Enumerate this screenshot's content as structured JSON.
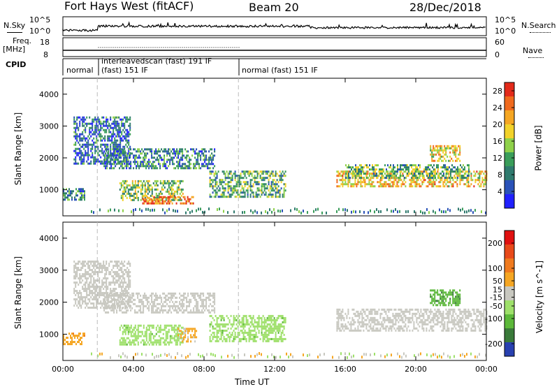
{
  "header": {
    "station": "Fort Hays West (fitACF)",
    "beam": "Beam 20",
    "date": "28/Dec/2018"
  },
  "top_panels": {
    "nsky_label": "N.Sky",
    "nsky_ticks": [
      "10^5",
      "10^0"
    ],
    "nsearch_label": "N.Search",
    "nsearch_ticks": [
      "10^5",
      "10^0"
    ],
    "freq_label_1": "Freq.",
    "freq_label_2": "[MHz]",
    "freq_ticks": [
      "18",
      "8"
    ],
    "nave_label": "Nave",
    "nave_ticks": [
      "60",
      "0"
    ],
    "cpid_label": "CPID",
    "cpid_segments": [
      "normal",
      "interleavedscan (fast) 191 IF",
      "(fast) 151 IF",
      "normal (fast) 151 IF"
    ]
  },
  "chart_data": [
    {
      "type": "heatmap",
      "title": "Power",
      "xlabel": "Time UT",
      "ylabel": "Slant Range [km]",
      "xlim": [
        "00:00",
        "24:00"
      ],
      "ylim": [
        180,
        4500
      ],
      "x_ticks": [
        "00:00",
        "04:00",
        "08:00",
        "12:00",
        "16:00",
        "20:00",
        "00:00"
      ],
      "y_ticks": [
        1000,
        2000,
        3000,
        4000
      ],
      "colorbar": {
        "label": "Power [dB]",
        "ticks": [
          4,
          8,
          12,
          16,
          20,
          24,
          28
        ],
        "range": [
          0,
          30
        ],
        "colors": [
          "#2020ff",
          "#2a52b8",
          "#2f7a6e",
          "#3a9d5a",
          "#8fd14a",
          "#f2d22a",
          "#f5a623",
          "#f06a1e",
          "#e32a1a"
        ]
      },
      "echo_bands": [
        {
          "t0": 0.0,
          "t1": 1.2,
          "r0": 700,
          "r1": 1050,
          "value": 10
        },
        {
          "t0": 0.6,
          "t1": 3.8,
          "r0": 1800,
          "r1": 3300,
          "value": 7
        },
        {
          "t0": 2.3,
          "t1": 8.6,
          "r0": 1700,
          "r1": 2300,
          "value": 9
        },
        {
          "t0": 3.2,
          "t1": 6.8,
          "r0": 700,
          "r1": 1300,
          "value": 14
        },
        {
          "t0": 4.5,
          "t1": 7.4,
          "r0": 600,
          "r1": 800,
          "value": 25
        },
        {
          "t0": 8.3,
          "t1": 12.6,
          "r0": 800,
          "r1": 1600,
          "value": 12
        },
        {
          "t0": 15.5,
          "t1": 24.0,
          "r0": 1100,
          "r1": 1600,
          "value": 20
        },
        {
          "t0": 16.0,
          "t1": 23.0,
          "r0": 1400,
          "r1": 1800,
          "value": 12
        },
        {
          "t0": 20.8,
          "t1": 22.5,
          "r0": 1900,
          "r1": 2400,
          "value": 19
        }
      ]
    },
    {
      "type": "heatmap",
      "title": "Velocity",
      "xlabel": "Time UT",
      "ylabel": "Slant Range [km]",
      "xlim": [
        "00:00",
        "24:00"
      ],
      "ylim": [
        180,
        4500
      ],
      "x_ticks": [
        "00:00",
        "04:00",
        "08:00",
        "12:00",
        "16:00",
        "20:00",
        "00:00"
      ],
      "y_ticks": [
        1000,
        2000,
        3000,
        4000
      ],
      "colorbar": {
        "label": "Velocity [m s^-1]",
        "ticks": [
          200,
          100,
          50,
          15,
          -15,
          -50,
          -100,
          -200
        ],
        "range": [
          -250,
          250
        ],
        "colors": [
          "#2840b0",
          "#3a7a3a",
          "#5cb83a",
          "#9ee06a",
          "#c8c8c0",
          "#f5a623",
          "#f07a1e",
          "#e84a1a",
          "#e01010"
        ]
      },
      "echo_bands": [
        {
          "t0": 0.0,
          "t1": 1.2,
          "r0": 700,
          "r1": 1050,
          "value": 60
        },
        {
          "t0": 0.6,
          "t1": 3.8,
          "r0": 1800,
          "r1": 3300,
          "value": 0
        },
        {
          "t0": 2.3,
          "t1": 8.6,
          "r0": 1700,
          "r1": 2300,
          "value": 0
        },
        {
          "t0": 3.2,
          "t1": 6.8,
          "r0": 700,
          "r1": 1300,
          "value": -60
        },
        {
          "t0": 6.5,
          "t1": 7.6,
          "r0": 800,
          "r1": 1200,
          "value": 40
        },
        {
          "t0": 8.3,
          "t1": 12.6,
          "r0": 800,
          "r1": 1600,
          "value": -60
        },
        {
          "t0": 15.5,
          "t1": 24.0,
          "r0": 1100,
          "r1": 1800,
          "value": 0
        },
        {
          "t0": 20.8,
          "t1": 22.5,
          "r0": 1900,
          "r1": 2400,
          "value": -120
        }
      ]
    }
  ]
}
